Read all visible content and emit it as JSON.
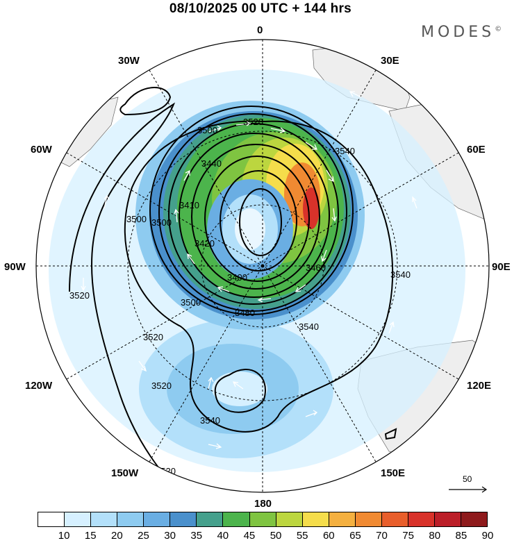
{
  "title": "08/10/2025  00 UTC  + 144 hrs",
  "brand": "MODES",
  "brand_mark": "©",
  "longitude_labels": [
    "0",
    "30E",
    "60E",
    "90E",
    "120E",
    "150E",
    "180",
    "150W",
    "120W",
    "90W",
    "60W",
    "30W"
  ],
  "contour_labels": [
    "3520",
    "3500",
    "3440",
    "3540",
    "3410",
    "3500",
    "3500",
    "3420",
    "3400",
    "3460",
    "3480",
    "3500",
    "3540",
    "3540",
    "3520",
    "3520",
    "3520",
    "3540",
    "3520"
  ],
  "reference_vector": {
    "label": "50"
  },
  "colorbar": {
    "labels": [
      "10",
      "15",
      "20",
      "25",
      "30",
      "35",
      "40",
      "45",
      "50",
      "55",
      "60",
      "65",
      "70",
      "75",
      "80",
      "85",
      "90"
    ],
    "colors": [
      "#ffffff",
      "#d6f0ff",
      "#b3e0fa",
      "#8ecbf0",
      "#6aaee3",
      "#4a90cc",
      "#45a08c",
      "#4cb44c",
      "#7fc441",
      "#bcd63f",
      "#f5dd4b",
      "#f4b040",
      "#f08a32",
      "#e85e2b",
      "#d8322a",
      "#bb1e28",
      "#8e1a1c"
    ]
  },
  "colors": {
    "land": "#eeeeee",
    "contour": "#000000",
    "grid": "#000000",
    "vector": "#ffffff"
  }
}
